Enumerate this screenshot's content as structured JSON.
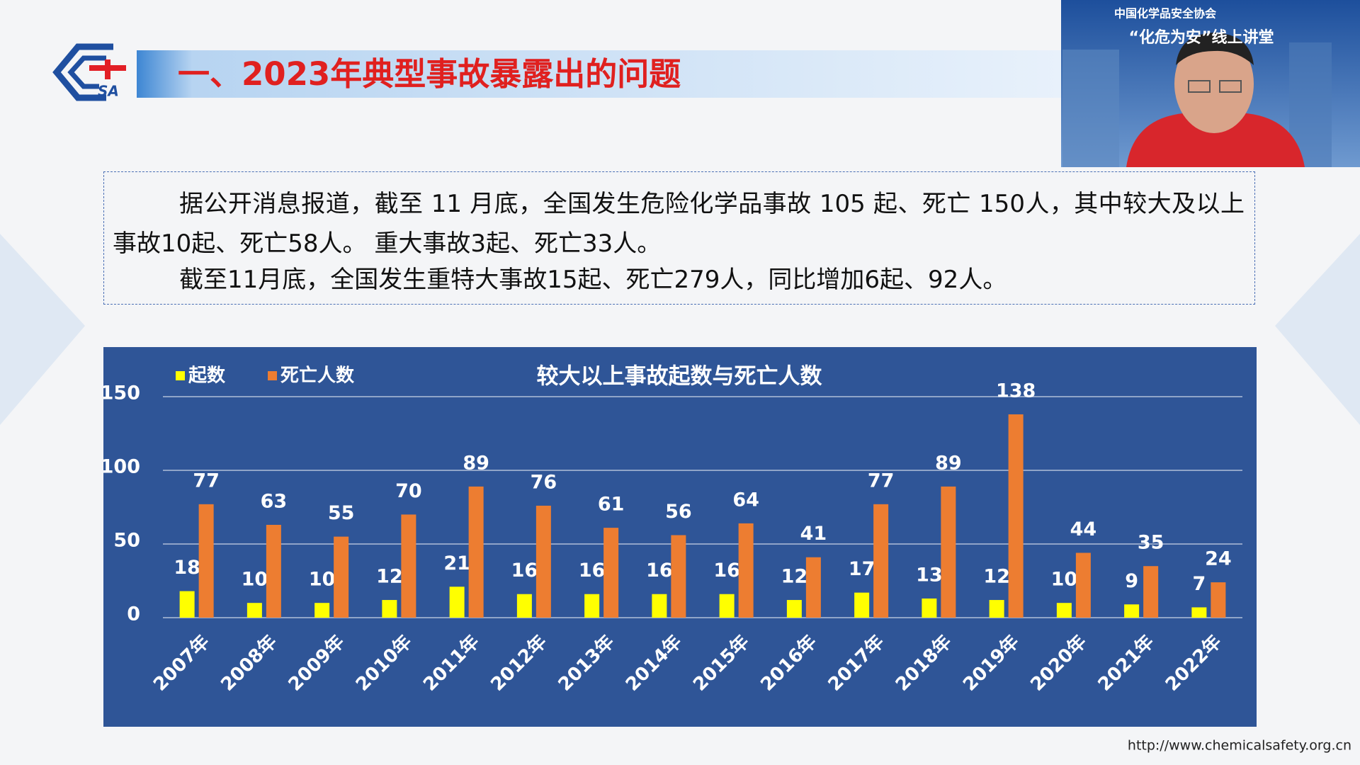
{
  "slide": {
    "title": "一、2023年典型事故暴露出的问题",
    "logo_text": "SA",
    "paragraphs": [
      "据公开消息报道，截至 11 月底，全国发生危险化学品事故 105 起、死亡 150人，其中较大及以上事故10起、死亡58人。 重大事故3起、死亡33人。",
      "截至11月底，全国发生重特大事故15起、死亡279人，同比增加6起、92人。"
    ]
  },
  "webcam": {
    "organization": "中国化学品安全协会",
    "program": "“化危为安”线上讲堂"
  },
  "footer": {
    "url": "http://www.chemicalsafety.org.cn"
  },
  "chart_data": {
    "type": "bar",
    "title": "较大以上事故起数与死亡人数",
    "categories": [
      "2007年",
      "2008年",
      "2009年",
      "2010年",
      "2011年",
      "2012年",
      "2013年",
      "2014年",
      "2015年",
      "2016年",
      "2017年",
      "2018年",
      "2019年",
      "2020年",
      "2021年",
      "2022年"
    ],
    "series": [
      {
        "name": "起数",
        "color": "#ffff00",
        "values": [
          18,
          10,
          10,
          12,
          21,
          16,
          16,
          16,
          16,
          12,
          17,
          13,
          12,
          10,
          9,
          7
        ]
      },
      {
        "name": "死亡人数",
        "color": "#ed7d31",
        "values": [
          77,
          63,
          55,
          70,
          89,
          76,
          61,
          56,
          64,
          41,
          77,
          89,
          138,
          44,
          35,
          24
        ]
      }
    ],
    "ylim": [
      0,
      150
    ],
    "yticks": [
      0,
      50,
      100,
      150
    ],
    "grid": true,
    "legend": "top-left"
  }
}
